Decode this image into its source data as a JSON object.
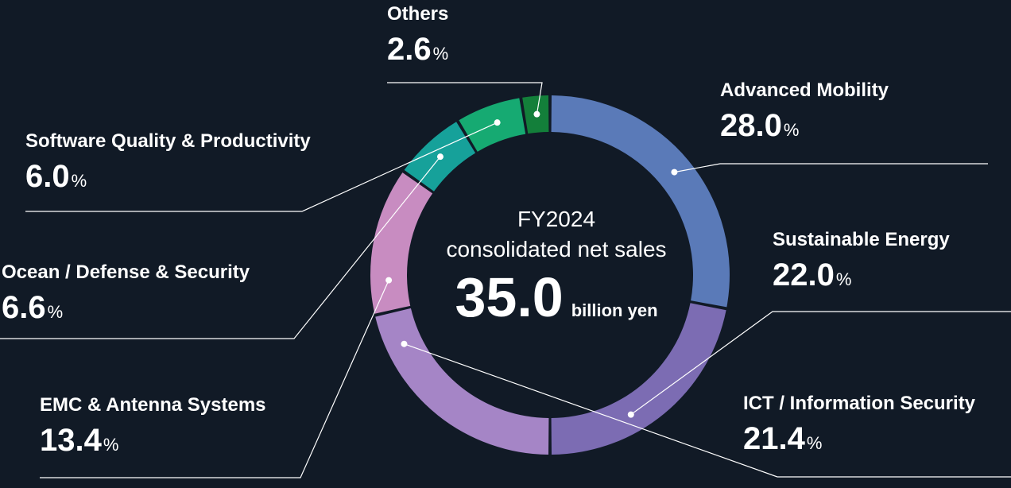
{
  "chart_data": {
    "type": "pie",
    "style": "donut",
    "center": {
      "line1": "FY2024",
      "line2": "consolidated net sales",
      "total": "35.0",
      "unit": "billion yen"
    },
    "pct_unit": "%",
    "segments": [
      {
        "name": "Advanced Mobility",
        "value": 28.0,
        "value_label": "28.0",
        "color": "#5a7ab8"
      },
      {
        "name": "Sustainable Energy",
        "value": 22.0,
        "value_label": "22.0",
        "color": "#7c6cb3"
      },
      {
        "name": "ICT / Information Security",
        "value": 21.4,
        "value_label": "21.4",
        "color": "#a585c6"
      },
      {
        "name": "EMC & Antenna Systems",
        "value": 13.4,
        "value_label": "13.4",
        "color": "#c88cc1"
      },
      {
        "name": "Ocean / Defense & Security",
        "value": 6.6,
        "value_label": "6.6",
        "color": "#16a19a"
      },
      {
        "name": "Software Quality & Productivity",
        "value": 6.0,
        "value_label": "6.0",
        "color": "#16aa72"
      },
      {
        "name": "Others",
        "value": 2.6,
        "value_label": "2.6",
        "color": "#137f3a"
      }
    ]
  }
}
